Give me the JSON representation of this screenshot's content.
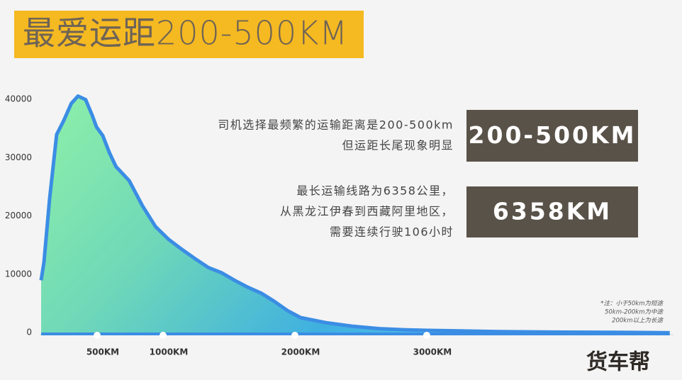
{
  "chart_data": {
    "type": "area",
    "title": "最爱运距200-500KM",
    "x": [
      32,
      54,
      97,
      150,
      204,
      260,
      312,
      370,
      420,
      452,
      500,
      550,
      600,
      700,
      800,
      900,
      1000,
      1100,
      1200,
      1300,
      1400,
      1500,
      1600,
      1700,
      1800,
      1900,
      2000,
      2200,
      2400,
      2600,
      2800,
      3000,
      3500,
      4000,
      4500,
      4800
    ],
    "values": [
      9200,
      12300,
      23200,
      34200,
      36600,
      39500,
      40800,
      40200,
      37500,
      35500,
      34000,
      31100,
      28700,
      26300,
      22000,
      18400,
      16200,
      14500,
      12900,
      11400,
      10500,
      9200,
      8000,
      7000,
      5600,
      4000,
      2800,
      1900,
      1300,
      900,
      700,
      600,
      400,
      300,
      250,
      200
    ],
    "color": "#3b8de4",
    "xlim": [
      0,
      4850
    ],
    "ylim": [
      0,
      45000
    ],
    "xticks": [
      {
        "value": 500,
        "label": "500KM"
      },
      {
        "value": 1000,
        "label": "1000KM"
      },
      {
        "value": 2000,
        "label": "2000KM"
      },
      {
        "value": 3000,
        "label": "3000KM"
      }
    ],
    "yticks": [
      0,
      10000,
      20000,
      30000,
      40000
    ],
    "annotations": [
      {
        "lines": [
          "司机选择最频繁的运输距离是200-500km",
          "但运距长尾现象明显"
        ],
        "highlight": "200-500KM"
      },
      {
        "lines": [
          "最长运输线路为6358公里，",
          "从黑龙江伊春到西藏阿里地区，",
          "需要连续行驶106小时"
        ],
        "highlight": "6358KM"
      }
    ],
    "notes": [
      "*注：小于50km为短途",
      "50km-200km为中途",
      "200km以上为长途"
    ],
    "logo": "货车帮"
  }
}
